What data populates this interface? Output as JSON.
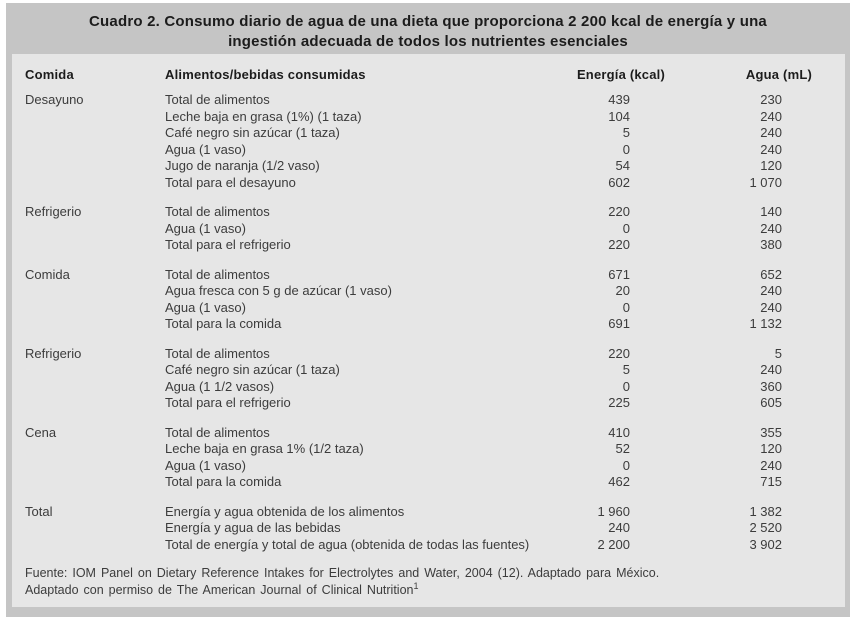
{
  "colors": {
    "page_background": "#ffffff",
    "frame_gray": "#c5c5c5",
    "panel_gray": "#e6e6e6",
    "heading_text": "#1c1c1c",
    "body_text": "#3c3c3c"
  },
  "title": {
    "full": "Cuadro 2. Consumo diario de agua de una dieta que proporciona 2 200 kcal de energía y una ingestión adecuada de todos los nutrientes esenciales",
    "line1": "Cuadro 2. Consumo diario de agua de una dieta que proporciona 2 200 kcal de energía y una",
    "line2": "ingestión adecuada de todos los nutrientes esenciales"
  },
  "table": {
    "columns": [
      "Comida",
      "Alimentos/bebidas consumidas",
      "Energía (kcal)",
      "Agua (mL)"
    ],
    "groups": [
      {
        "meal": "Desayuno",
        "rows": [
          {
            "item": "Total de alimentos",
            "kcal": "439",
            "ml": "230"
          },
          {
            "item": "Leche baja en grasa (1%) (1 taza)",
            "kcal": "104",
            "ml": "240"
          },
          {
            "item": "Café negro sin azúcar (1 taza)",
            "kcal": "5",
            "ml": "240"
          },
          {
            "item": "Agua (1 vaso)",
            "kcal": "0",
            "ml": "240"
          },
          {
            "item": "Jugo de naranja (1/2 vaso)",
            "kcal": "54",
            "ml": "120"
          },
          {
            "item": "Total para el desayuno",
            "kcal": "602",
            "ml": "1 070"
          }
        ]
      },
      {
        "meal": "Refrigerio",
        "rows": [
          {
            "item": "Total de alimentos",
            "kcal": "220",
            "ml": "140"
          },
          {
            "item": "Agua (1 vaso)",
            "kcal": "0",
            "ml": "240"
          },
          {
            "item": "Total para el refrigerio",
            "kcal": "220",
            "ml": "380"
          }
        ]
      },
      {
        "meal": "Comida",
        "rows": [
          {
            "item": "Total de alimentos",
            "kcal": "671",
            "ml": "652"
          },
          {
            "item": "Agua fresca con 5 g de azúcar (1 vaso)",
            "kcal": "20",
            "ml": "240"
          },
          {
            "item": "Agua (1 vaso)",
            "kcal": "0",
            "ml": "240"
          },
          {
            "item": "Total para la comida",
            "kcal": "691",
            "ml": "1 132"
          }
        ]
      },
      {
        "meal": "Refrigerio",
        "rows": [
          {
            "item": "Total de alimentos",
            "kcal": "220",
            "ml": "5"
          },
          {
            "item": "Café negro sin azúcar (1 taza)",
            "kcal": "5",
            "ml": "240"
          },
          {
            "item": "Agua (1 1/2 vasos)",
            "kcal": "0",
            "ml": "360"
          },
          {
            "item": "Total para el refrigerio",
            "kcal": "225",
            "ml": "605"
          }
        ]
      },
      {
        "meal": "Cena",
        "rows": [
          {
            "item": "Total de alimentos",
            "kcal": "410",
            "ml": "355"
          },
          {
            "item": "Leche baja en grasa 1% (1/2 taza)",
            "kcal": "52",
            "ml": "120"
          },
          {
            "item": "Agua (1 vaso)",
            "kcal": "0",
            "ml": "240"
          },
          {
            "item": "Total para la comida",
            "kcal": "462",
            "ml": "715"
          }
        ]
      },
      {
        "meal": "Total",
        "rows": [
          {
            "item": "Energía y agua obtenida de los alimentos",
            "kcal": "1 960",
            "ml": "1 382"
          },
          {
            "item": "Energía y agua de las bebidas",
            "kcal": "240",
            "ml": "2 520"
          },
          {
            "item": "Total de energía y total de agua (obtenida de todas las fuentes)",
            "kcal": "2 200",
            "ml": "3 902"
          }
        ]
      }
    ]
  },
  "footnotes": {
    "line1": "Fuente: IOM Panel on Dietary Reference Intakes for Electrolytes and Water, 2004 (12). Adaptado para México.",
    "line2": "Adaptado con permiso de The American Journal of Clinical Nutrition",
    "line2_superscript": "1"
  }
}
